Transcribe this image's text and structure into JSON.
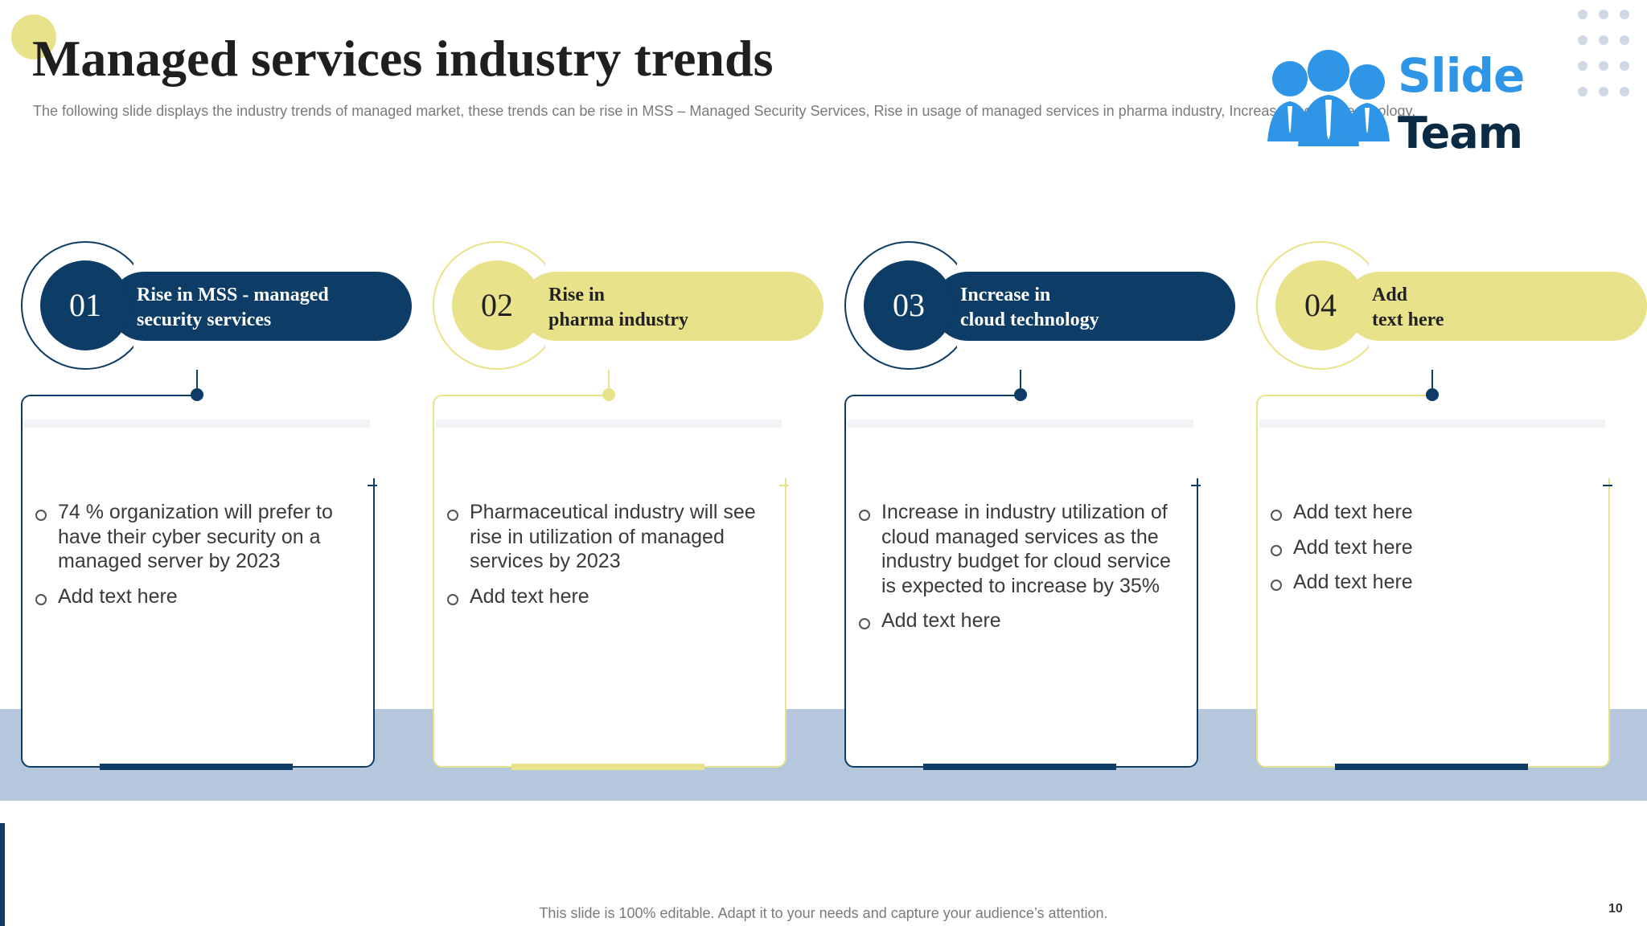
{
  "title": "Managed services industry trends",
  "subtitle": "The following slide displays the industry trends of managed market, these trends can be rise in MSS – Managed Security Services, Rise in usage of managed services in pharma industry, Increase in cloud technology.",
  "logo": {
    "line1": "Slide",
    "line2": "Team"
  },
  "colors": {
    "navy": "#0d3d66",
    "yellow": "#e8e38a",
    "band": "#b4c7dc"
  },
  "cards": [
    {
      "number": "01",
      "heading_line1": "Rise in MSS - managed",
      "heading_line2": "security services",
      "theme": "navy",
      "bullets": [
        "74 % organization will prefer to have their cyber security on a managed server by 2023",
        "Add text here"
      ]
    },
    {
      "number": "02",
      "heading_line1": "Rise in",
      "heading_line2": "pharma industry",
      "theme": "yellow",
      "bullets": [
        "Pharmaceutical industry will see rise in utilization of managed services by 2023",
        "Add text here"
      ]
    },
    {
      "number": "03",
      "heading_line1": "Increase in",
      "heading_line2": "cloud technology",
      "theme": "navy",
      "bullets": [
        "Increase in industry utilization of cloud managed services as the industry budget for cloud service is expected to increase by 35%",
        "Add text here"
      ]
    },
    {
      "number": "04",
      "heading_line1": "Add",
      "heading_line2": "text here",
      "theme": "yellow",
      "bullets": [
        "Add text here",
        "Add text here",
        "Add text here"
      ]
    }
  ],
  "footer": "This slide is 100% editable. Adapt it to your needs and capture your audience’s attention.",
  "page_number": "10"
}
